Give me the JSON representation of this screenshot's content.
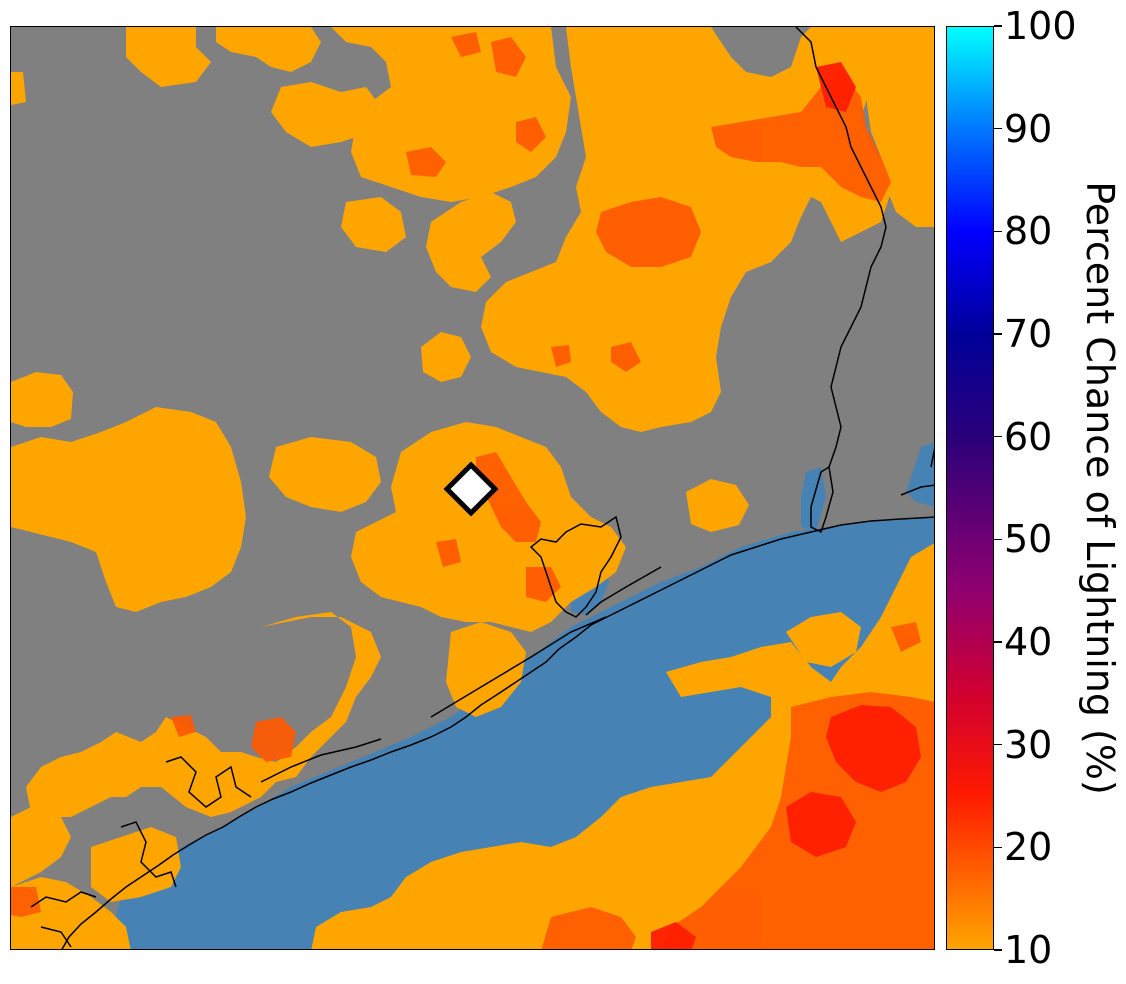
{
  "colorbar": {
    "label": "Percent Chance of Lightning (%)",
    "ticks": [
      "100",
      "90",
      "80",
      "70",
      "60",
      "50",
      "40",
      "30",
      "20",
      "10"
    ],
    "tick_values": [
      100,
      90,
      80,
      70,
      60,
      50,
      40,
      30,
      20,
      10
    ],
    "min": 10,
    "max": 100,
    "stops": [
      {
        "value": 10,
        "color": "#ffa500"
      },
      {
        "value": 25,
        "color": "#ff1a00"
      },
      {
        "value": 35,
        "color": "#d00030"
      },
      {
        "value": 45,
        "color": "#900070"
      },
      {
        "value": 60,
        "color": "#2a007a"
      },
      {
        "value": 70,
        "color": "#000099"
      },
      {
        "value": 80,
        "color": "#0000ff"
      },
      {
        "value": 90,
        "color": "#0077ff"
      },
      {
        "value": 100,
        "color": "#00ffff"
      }
    ]
  },
  "map": {
    "land_color": "#808080",
    "water_color": "#4682b4",
    "low_probability_color": "#ffa500",
    "high_probability_color": "#ff3c00",
    "coastline_color": "#000000",
    "marker": {
      "icon": "diamond-marker-icon",
      "fill": "#ffffff",
      "stroke": "#000000"
    }
  }
}
